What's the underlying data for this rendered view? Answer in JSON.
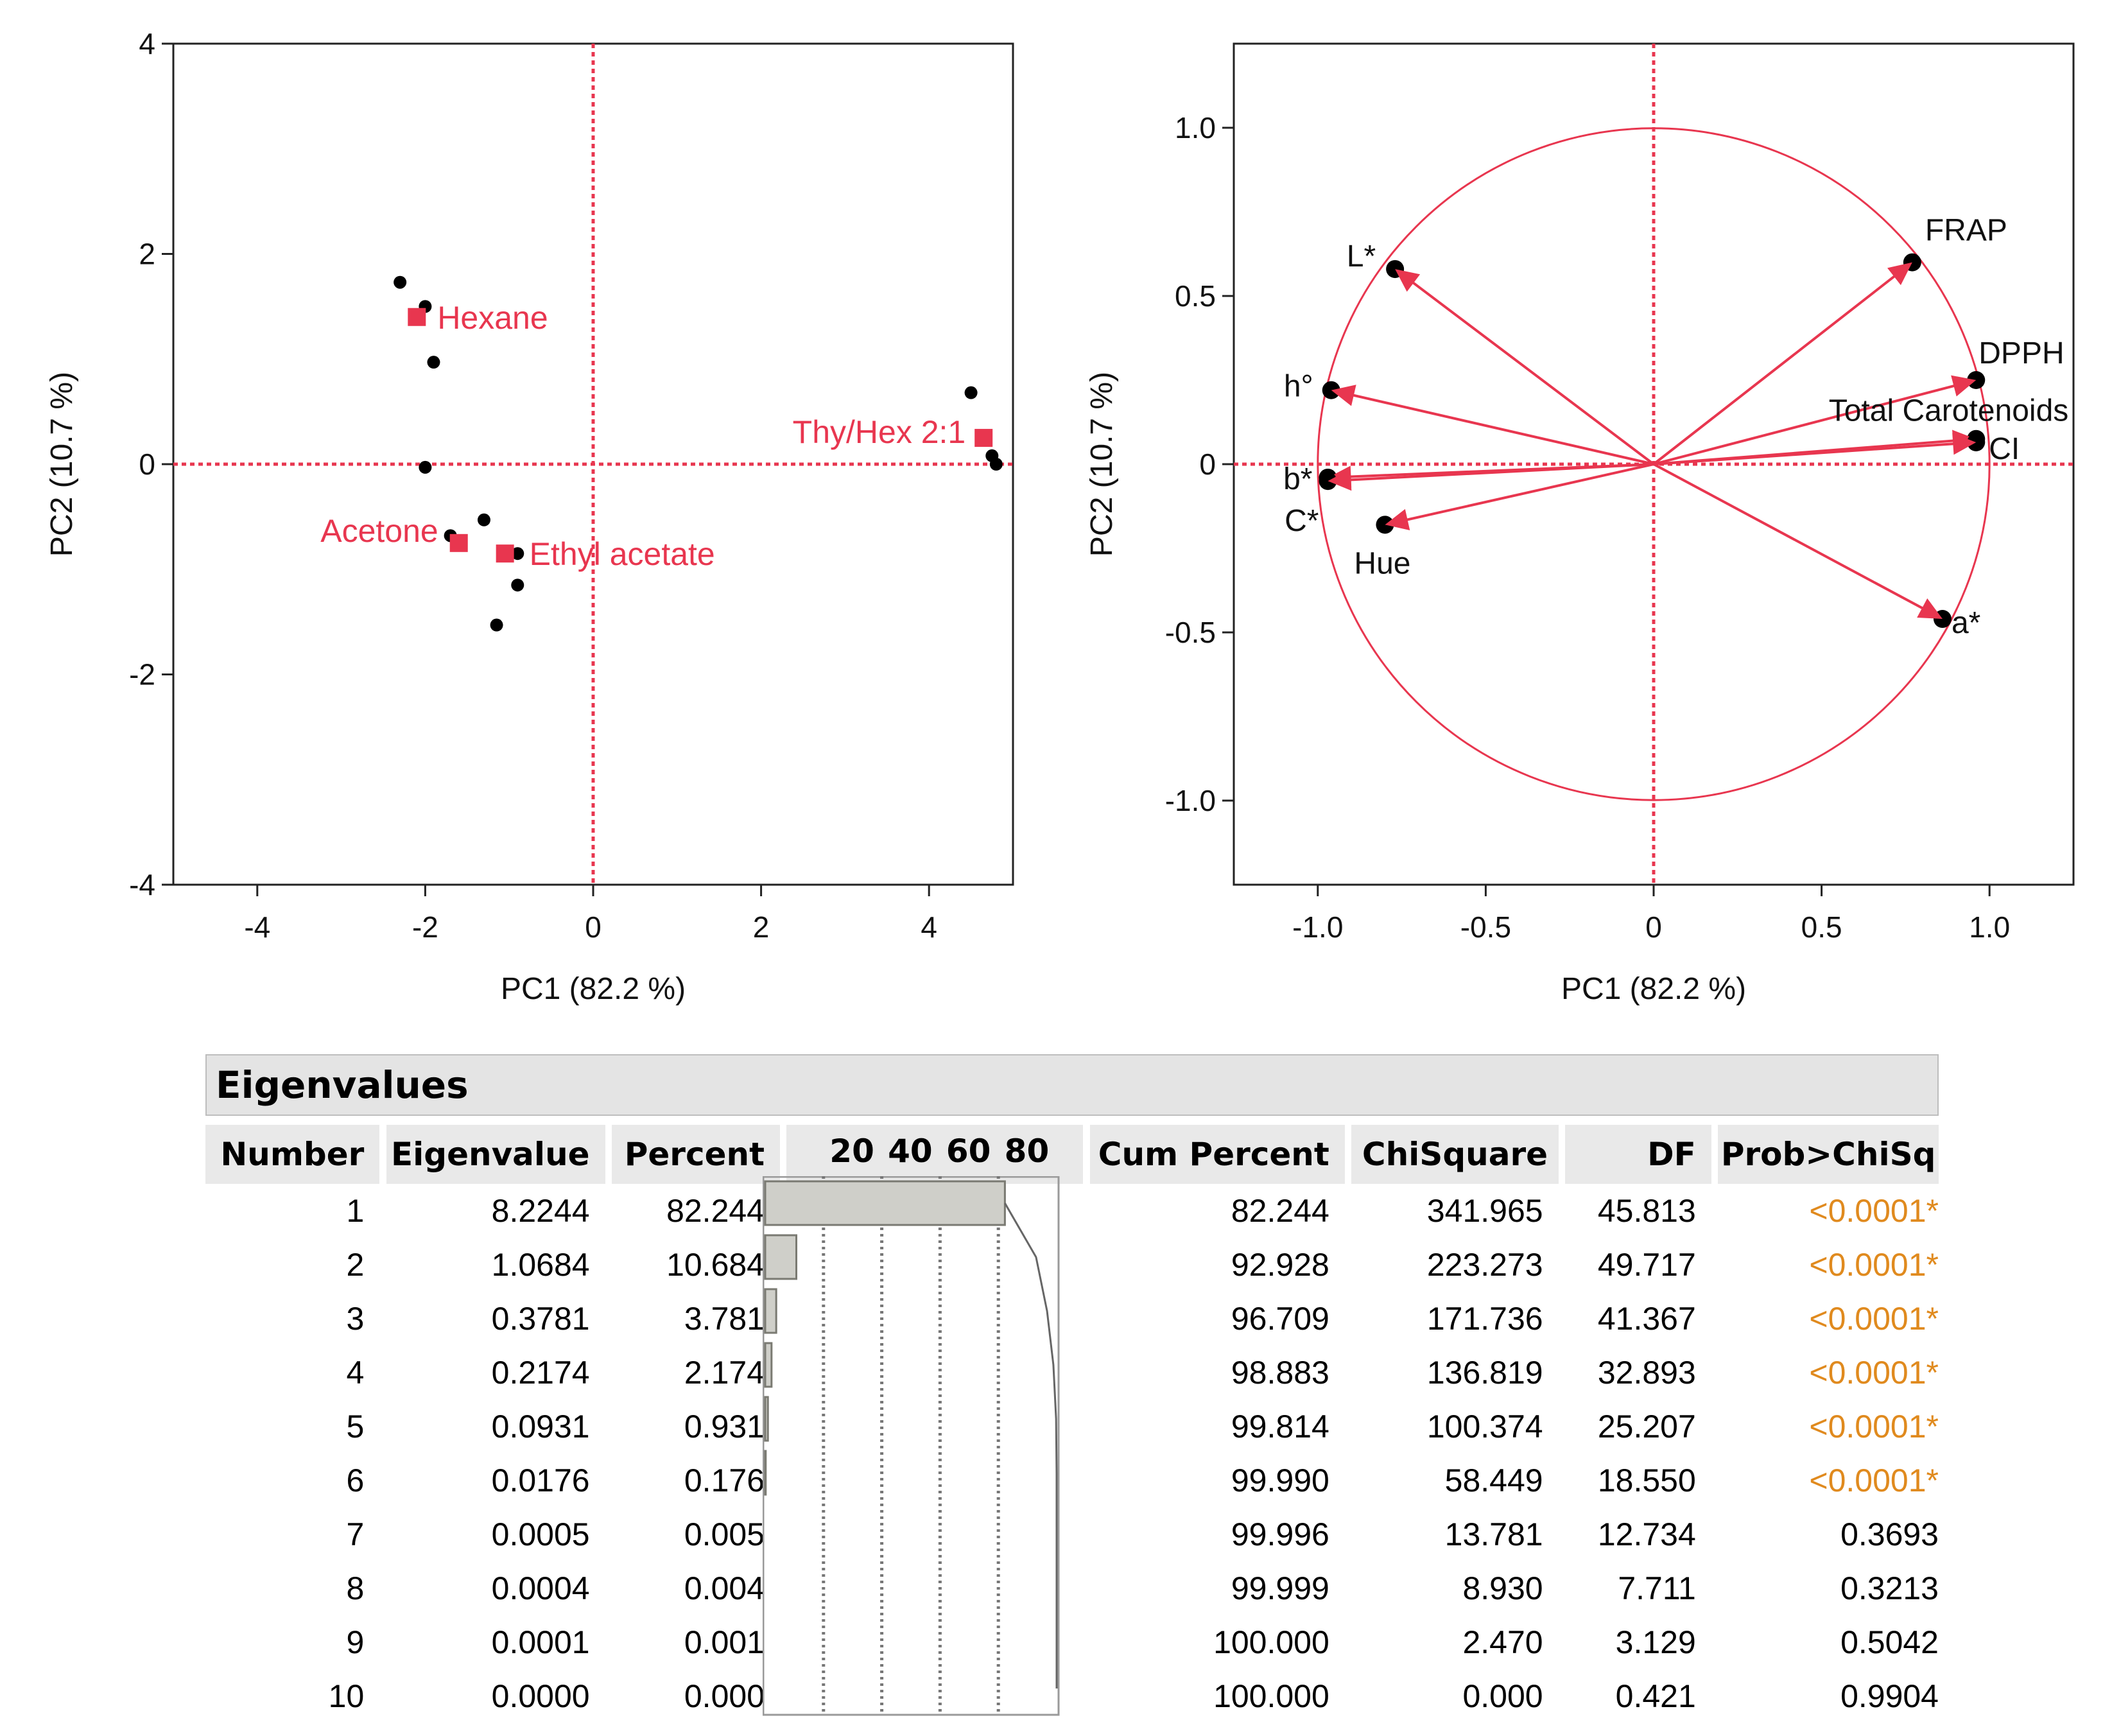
{
  "colors": {
    "accent": "#e8364f",
    "circle": "#e8364f",
    "points": "#000000",
    "significant": "#e08a1e",
    "bar_fill": "#cfcfc9",
    "header_bg": "#e9e9e9"
  },
  "chart_data": [
    {
      "type": "scatter",
      "title": "",
      "xlabel": "PC1  (82.2 %)",
      "ylabel": "PC2  (10.7 %)",
      "xlim": [
        -5,
        5
      ],
      "ylim": [
        -4,
        4
      ],
      "xticks": [
        "-4",
        "-2",
        "0",
        "2",
        "4"
      ],
      "xtick_values": [
        -4,
        -2,
        0,
        2,
        4
      ],
      "yticks": [
        "4",
        "2",
        "0",
        "-2",
        "-4"
      ],
      "ytick_values": [
        4,
        2,
        0,
        -2,
        -4
      ],
      "points": [
        {
          "x": -2.3,
          "y": 1.73
        },
        {
          "x": -2.0,
          "y": 1.5
        },
        {
          "x": -1.9,
          "y": 0.97
        },
        {
          "x": -2.0,
          "y": -0.03
        },
        {
          "x": -1.7,
          "y": -0.68
        },
        {
          "x": -1.3,
          "y": -0.53
        },
        {
          "x": -0.9,
          "y": -0.85
        },
        {
          "x": -0.9,
          "y": -1.15
        },
        {
          "x": -1.15,
          "y": -1.53
        },
        {
          "x": 4.5,
          "y": 0.68
        },
        {
          "x": 4.75,
          "y": 0.08
        },
        {
          "x": 4.8,
          "y": 0.0
        }
      ],
      "centroids": [
        {
          "label": "Hexane",
          "x": -2.1,
          "y": 1.4
        },
        {
          "label": "Thy/Hex 2:1",
          "x": 4.65,
          "y": 0.25
        },
        {
          "label": "Acetone",
          "x": -1.6,
          "y": -0.75
        },
        {
          "label": "Ethyl acetate",
          "x": -1.05,
          "y": -0.85
        }
      ]
    },
    {
      "type": "loading",
      "title": "",
      "xlabel": "PC1  (82.2 %)",
      "ylabel": "PC2  (10.7 %)",
      "xlim": [
        -1.25,
        1.25
      ],
      "ylim": [
        -1.25,
        1.25
      ],
      "xticks": [
        "-1.0",
        "-0.5",
        "0",
        "0.5",
        "1.0"
      ],
      "xtick_values": [
        -1.0,
        -0.5,
        0,
        0.5,
        1.0
      ],
      "yticks": [
        "1.0",
        "0.5",
        "0",
        "-0.5",
        "-1.0"
      ],
      "ytick_values": [
        1.0,
        0.5,
        0,
        -0.5,
        -1.0
      ],
      "loadings": [
        {
          "label": "L*",
          "x": -0.77,
          "y": 0.58
        },
        {
          "label": "FRAP",
          "x": 0.77,
          "y": 0.6
        },
        {
          "label": "DPPH",
          "x": 0.96,
          "y": 0.25
        },
        {
          "label": "h°",
          "x": -0.96,
          "y": 0.22
        },
        {
          "label": "Total Carotenoids",
          "x": 0.96,
          "y": 0.075
        },
        {
          "label": "CI",
          "x": 0.96,
          "y": 0.065
        },
        {
          "label": "b*",
          "x": -0.97,
          "y": -0.04
        },
        {
          "label": "C*",
          "x": -0.97,
          "y": -0.05
        },
        {
          "label": "Hue",
          "x": -0.8,
          "y": -0.18
        },
        {
          "label": "a*",
          "x": 0.86,
          "y": -0.46
        }
      ]
    },
    {
      "type": "table",
      "title": "Eigenvalues",
      "columns": [
        "Number",
        "Eigenvalue",
        "Percent",
        "20",
        "40",
        "60",
        "80",
        "Cum Percent",
        "ChiSquare",
        "DF",
        "Prob>ChiSq"
      ],
      "bar_ticks": [
        "20",
        "40",
        "60",
        "80"
      ],
      "rows": [
        {
          "number": "1",
          "eigenvalue": "8.2244",
          "percent": "82.244",
          "pct": 82.244,
          "cum": "82.244",
          "cumv": 82.244,
          "chisq": "341.965",
          "df": "45.813",
          "prob": "<0.0001*",
          "sig": true
        },
        {
          "number": "2",
          "eigenvalue": "1.0684",
          "percent": "10.684",
          "pct": 10.684,
          "cum": "92.928",
          "cumv": 92.928,
          "chisq": "223.273",
          "df": "49.717",
          "prob": "<0.0001*",
          "sig": true
        },
        {
          "number": "3",
          "eigenvalue": "0.3781",
          "percent": "3.781",
          "pct": 3.781,
          "cum": "96.709",
          "cumv": 96.709,
          "chisq": "171.736",
          "df": "41.367",
          "prob": "<0.0001*",
          "sig": true
        },
        {
          "number": "4",
          "eigenvalue": "0.2174",
          "percent": "2.174",
          "pct": 2.174,
          "cum": "98.883",
          "cumv": 98.883,
          "chisq": "136.819",
          "df": "32.893",
          "prob": "<0.0001*",
          "sig": true
        },
        {
          "number": "5",
          "eigenvalue": "0.0931",
          "percent": "0.931",
          "pct": 0.931,
          "cum": "99.814",
          "cumv": 99.814,
          "chisq": "100.374",
          "df": "25.207",
          "prob": "<0.0001*",
          "sig": true
        },
        {
          "number": "6",
          "eigenvalue": "0.0176",
          "percent": "0.176",
          "pct": 0.176,
          "cum": "99.990",
          "cumv": 99.99,
          "chisq": "58.449",
          "df": "18.550",
          "prob": "<0.0001*",
          "sig": true
        },
        {
          "number": "7",
          "eigenvalue": "0.0005",
          "percent": "0.005",
          "pct": 0.005,
          "cum": "99.996",
          "cumv": 99.996,
          "chisq": "13.781",
          "df": "12.734",
          "prob": "0.3693",
          "sig": false
        },
        {
          "number": "8",
          "eigenvalue": "0.0004",
          "percent": "0.004",
          "pct": 0.004,
          "cum": "99.999",
          "cumv": 99.999,
          "chisq": "8.930",
          "df": "7.711",
          "prob": "0.3213",
          "sig": false
        },
        {
          "number": "9",
          "eigenvalue": "0.0001",
          "percent": "0.001",
          "pct": 0.001,
          "cum": "100.000",
          "cumv": 100.0,
          "chisq": "2.470",
          "df": "3.129",
          "prob": "0.5042",
          "sig": false
        },
        {
          "number": "10",
          "eigenvalue": "0.0000",
          "percent": "0.000",
          "pct": 0.0,
          "cum": "100.000",
          "cumv": 100.0,
          "chisq": "0.000",
          "df": "0.421",
          "prob": "0.9904",
          "sig": false
        }
      ]
    }
  ]
}
